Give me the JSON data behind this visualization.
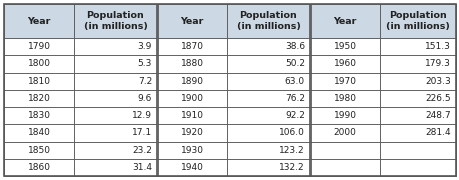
{
  "col1_years": [
    "1790",
    "1800",
    "1810",
    "1820",
    "1830",
    "1840",
    "1850",
    "1860"
  ],
  "col1_pops": [
    "3.9",
    "5.3",
    "7.2",
    "9.6",
    "12.9",
    "17.1",
    "23.2",
    "31.4"
  ],
  "col2_years": [
    "1870",
    "1880",
    "1890",
    "1900",
    "1910",
    "1920",
    "1930",
    "1940"
  ],
  "col2_pops": [
    "38.6",
    "50.2",
    "63.0",
    "76.2",
    "92.2",
    "106.0",
    "123.2",
    "132.2"
  ],
  "col3_years": [
    "1950",
    "1960",
    "1970",
    "1980",
    "1990",
    "2000",
    "",
    ""
  ],
  "col3_pops": [
    "151.3",
    "179.3",
    "203.3",
    "226.5",
    "248.7",
    "281.4",
    "",
    ""
  ],
  "header_year": "Year",
  "header_pop": "Population\n(in millions)",
  "header_bg": "#ccd9e5",
  "table_bg": "#ffffff",
  "border_color": "#555555",
  "header_fontsize": 6.8,
  "data_fontsize": 6.5
}
